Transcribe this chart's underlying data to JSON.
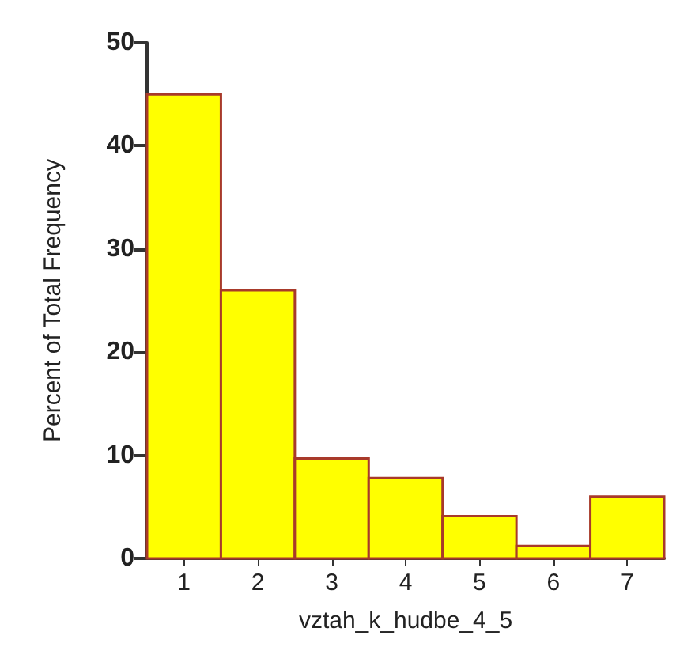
{
  "chart_data": {
    "type": "histogram",
    "xlabel": "vztah_k_hudbe_4_5",
    "ylabel": "Percent of Total Frequency",
    "bins": [
      0.5,
      1.5,
      2.5,
      3.5,
      4.5,
      5.5,
      6.5,
      7.5
    ],
    "values": [
      45,
      26,
      9.7,
      7.8,
      4.1,
      1.2,
      6.0
    ],
    "color": "#ffff00",
    "xlim": [
      0.5,
      7.5
    ],
    "xticks": [
      1,
      2,
      3,
      4,
      5,
      6,
      7
    ],
    "ylim": [
      0,
      50
    ],
    "yticks": [
      0,
      10,
      20,
      30,
      40,
      50
    ],
    "grid": false
  }
}
